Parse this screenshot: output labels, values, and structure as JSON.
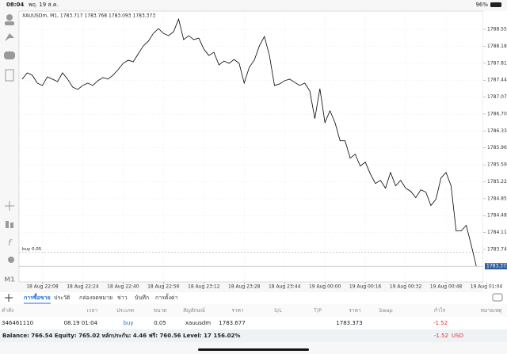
{
  "status_bar": {
    "time": "08:04",
    "date": "พฤ. 19 ส.ค.",
    "battery": "96%"
  },
  "toolbar": {
    "timeframe": "M1"
  },
  "chart_data": {
    "type": "line",
    "title": "XAUUSDm, M1, 1783.717 1783.768 1783.093 1783.373",
    "color": "#000000",
    "categories": [
      null,
      null,
      null,
      null,
      "18 Aug 22:08",
      null,
      null,
      null,
      null,
      null,
      null,
      null,
      "18 Aug 22:24",
      null,
      null,
      null,
      null,
      null,
      null,
      null,
      "18 Aug 22:40",
      null,
      null,
      null,
      null,
      null,
      null,
      null,
      "18 Aug 22:56",
      null,
      null,
      null,
      null,
      null,
      null,
      null,
      "18 Aug 23:12",
      null,
      null,
      null,
      null,
      null,
      null,
      null,
      "18 Aug 23:28",
      null,
      null,
      null,
      null,
      null,
      null,
      null,
      "18 Aug 23:44",
      null,
      null,
      null,
      null,
      null,
      null,
      null,
      "19 Aug 00:00",
      null,
      null,
      null,
      null,
      null,
      null,
      null,
      "19 Aug 00:16",
      null,
      null,
      null,
      null,
      null,
      null,
      null,
      "19 Aug 00:32",
      null,
      null,
      null,
      null,
      null,
      null,
      null,
      "19 Aug 00:48",
      null,
      null,
      null,
      null,
      null,
      null,
      null,
      "19 Aug 01:04"
    ],
    "values": [
      1787.462,
      1787.6,
      1787.548,
      1787.376,
      1787.324,
      1787.514,
      1787.462,
      1787.41,
      1787.6,
      1787.462,
      1787.289,
      1787.237,
      1787.324,
      1787.376,
      1787.324,
      1787.428,
      1787.497,
      1787.462,
      1787.548,
      1787.669,
      1787.807,
      1787.877,
      1787.842,
      1788.015,
      1788.187,
      1788.291,
      1788.464,
      1788.567,
      1788.464,
      1788.412,
      1788.498,
      1788.775,
      1788.326,
      1788.412,
      1788.326,
      1788.36,
      1788.118,
      1787.98,
      1788.049,
      1787.773,
      1787.859,
      1787.807,
      1787.894,
      1787.807,
      1787.376,
      1787.721,
      1787.877,
      1788.187,
      1788.395,
      1787.98,
      1787.324,
      1787.358,
      1787.428,
      1787.462,
      1787.393,
      1787.324,
      1787.376,
      1787.203,
      1786.599,
      1787.255,
      1786.512,
      1786.771,
      1786.512,
      1786.115,
      1786.115,
      1785.735,
      1785.822,
      1785.562,
      1785.649,
      1785.39,
      1785.182,
      1785.252,
      1785.079,
      1785.424,
      1785.131,
      1785.252,
      1785.079,
      1785.01,
      1784.872,
      1785.044,
      1784.992,
      1784.699,
      1784.837,
      1785.303,
      1785.424,
      1785.131,
      1784.146,
      1784.146,
      1784.267,
      1783.835,
      1783.373,
      null,
      null
    ],
    "ylim": [
      1783.03,
      1788.95
    ],
    "yticks": [
      {
        "value": 1788.55,
        "label": "1788.550"
      },
      {
        "value": 1788.18,
        "label": "1788.180"
      },
      {
        "value": 1787.81,
        "label": "1787.810"
      },
      {
        "value": 1787.44,
        "label": "1787.440"
      },
      {
        "value": 1787.07,
        "label": "1787.070"
      },
      {
        "value": 1786.7,
        "label": "1786.700"
      },
      {
        "value": 1786.33,
        "label": "1786.330"
      },
      {
        "value": 1785.96,
        "label": "1785.960"
      },
      {
        "value": 1785.59,
        "label": "1785.590"
      },
      {
        "value": 1785.22,
        "label": "1785.220"
      },
      {
        "value": 1784.85,
        "label": "1784.850"
      },
      {
        "value": 1784.48,
        "label": "1784.480"
      },
      {
        "value": 1784.11,
        "label": "1784.110"
      },
      {
        "value": 1783.74,
        "label": "1783.740"
      }
    ],
    "grid": true,
    "last_price": 1783.373,
    "order_line": {
      "label": "buy 0.05",
      "price": 1783.677
    }
  },
  "tabs": [
    "การซื้อขาย",
    "ประวัติ",
    "กล่องจดหมาย",
    "ข่าว",
    "บันทึก",
    "การตั้งค่า"
  ],
  "active_tab": 0,
  "table": {
    "headers": [
      "คำสั่ง",
      "เวลา",
      "ประเภท",
      "ขนาด",
      "สัญลักษณ์",
      "ราคา",
      "S/L",
      "T/P",
      "ราคา",
      "Swap",
      "กำไร",
      "หมายเหตุ"
    ],
    "rows": [
      {
        "order": "346461110",
        "time": "08.19 01:04",
        "type": "buy",
        "volume": "0.05",
        "symbol": "xauusdm",
        "open_price": "1783.677",
        "price": "1783.373",
        "profit": "-1.52"
      }
    ]
  },
  "footer": {
    "summary": "Balance: 766.54 Equity: 765.02 หลักประกัน: 4.46 ฟรี: 760.56 Level: 17 156.02%",
    "profit": "-1.52",
    "currency": "USD"
  }
}
